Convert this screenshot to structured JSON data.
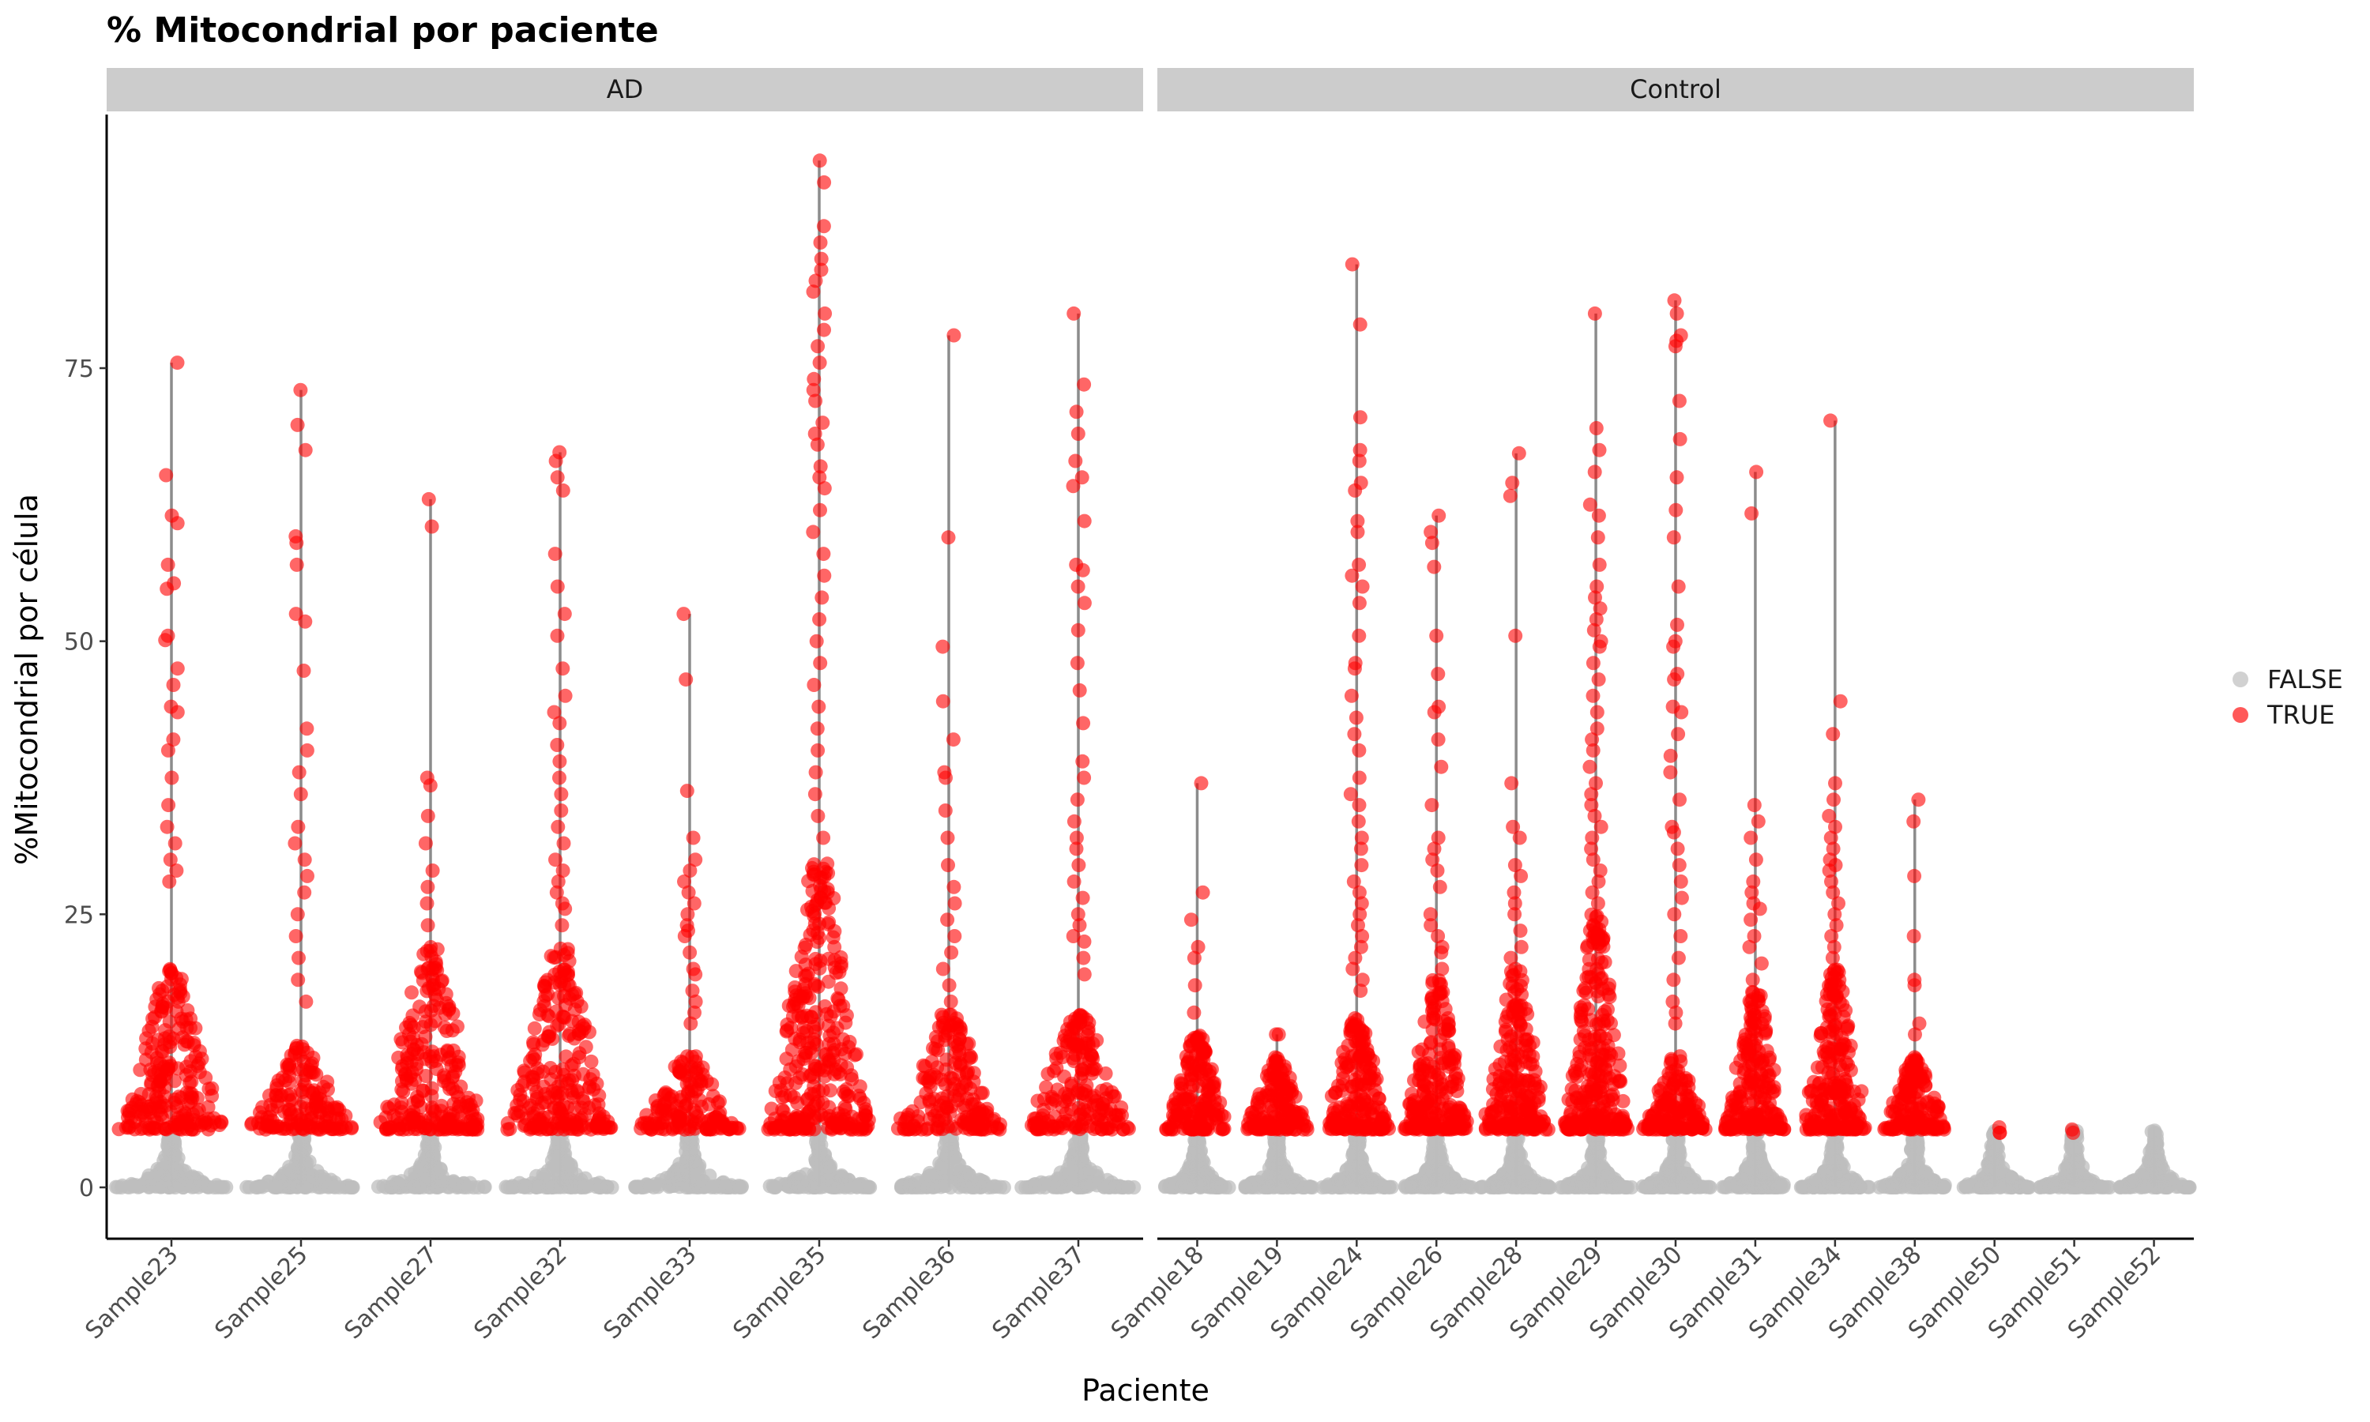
{
  "chart_data": {
    "type": "violin-jitter",
    "title": "% Mitocondrial por paciente",
    "xlabel": "Paciente",
    "ylabel": "%Mitocondrial por célula",
    "ylim": [
      -5,
      96
    ],
    "yticks": [
      0,
      25,
      50,
      75
    ],
    "legend": {
      "position": "right",
      "entries": [
        {
          "label": "FALSE",
          "color": "#bebebe"
        },
        {
          "label": "TRUE",
          "color": "#ff0000"
        }
      ]
    },
    "panels": [
      {
        "name": "AD",
        "samples": [
          {
            "name": "Sample23",
            "max": 75.5,
            "dense_upper": 20,
            "high_points": [
              65.2,
              61.5,
              60.8,
              57,
              55.3,
              54.8,
              50.5,
              50.1,
              47.5,
              46,
              44,
              43.5,
              41,
              40,
              37.5,
              35,
              33,
              31.5,
              30,
              29,
              28
            ]
          },
          {
            "name": "Sample25",
            "max": 73,
            "dense_upper": 13,
            "high_points": [
              69.8,
              67.5,
              59.6,
              59,
              57,
              52.5,
              51.8,
              47.3,
              42,
              40,
              38,
              36,
              33,
              31.5,
              30,
              28.5,
              27,
              25,
              23,
              21,
              19,
              17
            ]
          },
          {
            "name": "Sample27",
            "max": 63,
            "dense_upper": 22,
            "high_points": [
              60.5,
              37.5,
              36.8,
              34,
              31.5,
              29,
              27.5,
              26,
              24
            ]
          },
          {
            "name": "Sample32",
            "max": 67.3,
            "dense_upper": 22,
            "high_points": [
              66.5,
              65,
              63.8,
              58,
              55,
              52.5,
              50.5,
              47.5,
              45,
              43.5,
              42.5,
              40.5,
              39,
              37.5,
              36,
              34.5,
              33,
              31.5,
              30,
              29,
              28,
              27,
              26,
              25.5,
              24
            ]
          },
          {
            "name": "Sample33",
            "max": 52.5,
            "dense_upper": 12,
            "high_points": [
              46.5,
              36.3,
              32,
              30,
              29,
              28,
              27,
              26,
              25,
              24,
              23.5,
              23,
              21.5,
              20,
              19.5,
              18,
              17,
              16,
              15
            ]
          },
          {
            "name": "Sample35",
            "max": 94,
            "dense_upper": 30,
            "high_points": [
              92,
              88,
              86.5,
              85,
              84,
              83,
              82,
              80,
              78.5,
              77,
              75.5,
              74,
              73,
              72,
              70,
              69,
              68,
              66,
              65,
              64,
              62,
              60,
              58,
              56,
              54,
              52,
              50,
              48,
              46,
              44,
              42,
              40,
              38,
              36,
              34,
              32
            ]
          },
          {
            "name": "Sample36",
            "max": 78,
            "dense_upper": 16,
            "high_points": [
              59.5,
              49.5,
              44.5,
              41,
              38,
              37.5,
              34.5,
              32,
              29.5,
              27.5,
              26,
              24.5,
              23,
              21.5,
              20,
              18.5,
              17
            ]
          },
          {
            "name": "Sample37",
            "max": 80,
            "dense_upper": 16,
            "high_points": [
              73.5,
              71,
              69,
              66.5,
              65,
              64.2,
              61,
              57,
              56.5,
              55,
              53.5,
              51,
              48,
              45.5,
              42.5,
              39,
              37.5,
              35.5,
              33.5,
              32,
              31,
              29.5,
              28,
              26.5,
              25,
              24,
              23,
              22.5,
              21,
              19.5
            ]
          }
        ]
      },
      {
        "name": "Control",
        "samples": [
          {
            "name": "Sample18",
            "max": 37,
            "dense_upper": 14,
            "high_points": [
              27,
              24.5,
              22,
              21,
              18.5,
              16
            ]
          },
          {
            "name": "Sample19",
            "max": 14,
            "dense_upper": 12,
            "high_points": [
              14,
              11.5,
              9.5,
              9,
              8.2,
              7,
              6
            ]
          },
          {
            "name": "Sample24",
            "max": 84.5,
            "dense_upper": 16,
            "high_points": [
              79,
              70.5,
              67.5,
              66.5,
              64.5,
              63.8,
              61,
              60,
              57,
              56,
              55,
              53.5,
              50.5,
              48,
              47.5,
              45,
              43,
              41.5,
              40,
              37.5,
              36,
              35,
              33.5,
              32,
              31,
              29.5,
              28,
              27,
              26,
              25,
              24,
              23,
              22,
              21,
              20,
              19,
              18
            ]
          },
          {
            "name": "Sample26",
            "max": 61.5,
            "dense_upper": 19,
            "high_points": [
              60,
              59,
              56.8,
              50.5,
              47,
              44,
              43.5,
              41,
              38.5,
              35,
              32,
              31,
              30,
              29,
              27.5,
              25,
              24,
              23,
              22,
              21.5,
              20
            ]
          },
          {
            "name": "Sample28",
            "max": 67.2,
            "dense_upper": 20,
            "high_points": [
              64.5,
              63.3,
              50.5,
              37,
              33,
              32,
              29.5,
              28.5,
              27,
              26,
              25,
              23.5,
              22,
              21
            ]
          },
          {
            "name": "Sample29",
            "max": 80,
            "dense_upper": 25,
            "high_points": [
              69.5,
              67.5,
              65.5,
              62.5,
              61.5,
              59.5,
              57,
              55,
              54,
              53,
              52,
              51,
              50,
              49.5,
              48,
              46.5,
              45,
              43.5,
              42,
              41,
              40,
              38.5,
              37,
              36,
              35,
              34,
              33,
              32,
              31,
              30,
              29,
              28,
              27,
              26
            ]
          },
          {
            "name": "Sample30",
            "max": 81.2,
            "dense_upper": 12,
            "high_points": [
              80,
              78,
              77.5,
              77,
              72,
              68.5,
              65,
              62,
              59.5,
              55,
              51.5,
              50,
              49.5,
              47,
              46.5,
              44,
              43.5,
              41.5,
              39.5,
              38,
              35.5,
              33,
              32.5,
              31,
              29.5,
              28,
              26.5,
              25,
              23,
              21,
              19,
              17,
              16,
              15
            ]
          },
          {
            "name": "Sample31",
            "max": 65.5,
            "dense_upper": 18,
            "high_points": [
              61.7,
              35,
              33.5,
              32,
              30,
              28,
              27,
              26,
              25.5,
              24.5,
              23,
              22,
              20.5,
              19
            ]
          },
          {
            "name": "Sample34",
            "max": 70.2,
            "dense_upper": 20,
            "high_points": [
              44.5,
              41.5,
              37,
              35.5,
              34,
              33,
              32,
              31,
              30,
              29.5,
              29,
              28,
              27,
              26,
              25,
              24,
              23,
              22,
              21
            ]
          },
          {
            "name": "Sample38",
            "max": 35.5,
            "dense_upper": 12,
            "high_points": [
              33.5,
              28.5,
              23,
              19,
              18.5,
              15,
              14
            ]
          },
          {
            "name": "Sample50",
            "max": 5.5,
            "dense_upper": 0,
            "high_points": [
              5,
              5
            ]
          },
          {
            "name": "Sample51",
            "max": 5.3,
            "dense_upper": 0,
            "high_points": [
              5
            ]
          },
          {
            "name": "Sample52",
            "max": 5.5,
            "dense_upper": 0,
            "high_points": []
          }
        ]
      }
    ]
  }
}
